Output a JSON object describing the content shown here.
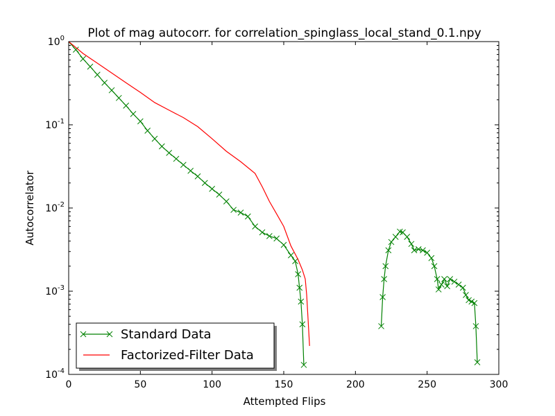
{
  "chart_data": {
    "type": "line",
    "title": "Plot of mag autocorr. for correlation_spinglass_local_stand_0.1.npy",
    "xlabel": "Attempted Flips",
    "ylabel": "Autocorrelator",
    "xlim": [
      0,
      300
    ],
    "ylim": [
      0.0001,
      1
    ],
    "yscale": "log",
    "grid": false,
    "legend_position": "lower-left",
    "x_ticks": [
      {
        "value": 0,
        "label": "0"
      },
      {
        "value": 50,
        "label": "50"
      },
      {
        "value": 100,
        "label": "100"
      },
      {
        "value": 150,
        "label": "150"
      },
      {
        "value": 200,
        "label": "200"
      },
      {
        "value": 250,
        "label": "250"
      },
      {
        "value": 300,
        "label": "300"
      }
    ],
    "y_ticks": [
      {
        "value": 1,
        "base": "10",
        "exp": "0"
      },
      {
        "value": 0.1,
        "base": "10",
        "exp": "-1"
      },
      {
        "value": 0.01,
        "base": "10",
        "exp": "-2"
      },
      {
        "value": 0.001,
        "base": "10",
        "exp": "-3"
      },
      {
        "value": 0.0001,
        "base": "10",
        "exp": "-4"
      }
    ],
    "series": [
      {
        "name": "Standard Data",
        "color": "#008000",
        "marker": "x",
        "points": [
          [
            0,
            1.0
          ],
          [
            5,
            0.8
          ],
          [
            10,
            0.62
          ],
          [
            15,
            0.5
          ],
          [
            20,
            0.4
          ],
          [
            25,
            0.32
          ],
          [
            30,
            0.26
          ],
          [
            35,
            0.21
          ],
          [
            40,
            0.17
          ],
          [
            45,
            0.135
          ],
          [
            50,
            0.11
          ],
          [
            55,
            0.085
          ],
          [
            60,
            0.068
          ],
          [
            65,
            0.055
          ],
          [
            70,
            0.046
          ],
          [
            75,
            0.039
          ],
          [
            80,
            0.033
          ],
          [
            85,
            0.028
          ],
          [
            90,
            0.024
          ],
          [
            95,
            0.02
          ],
          [
            100,
            0.017
          ],
          [
            105,
            0.0145
          ],
          [
            110,
            0.012
          ],
          [
            115,
            0.0095
          ],
          [
            120,
            0.0088
          ],
          [
            125,
            0.0079
          ],
          [
            130,
            0.006
          ],
          [
            135,
            0.0051
          ],
          [
            140,
            0.0046
          ],
          [
            145,
            0.0043
          ],
          [
            150,
            0.0036
          ],
          [
            155,
            0.0027
          ],
          [
            158,
            0.0023
          ],
          [
            160,
            0.0016
          ],
          [
            161,
            0.0011
          ],
          [
            162,
            0.00075
          ],
          [
            163,
            0.0004
          ],
          [
            164,
            0.00013
          ],
          [
            218,
            0.00038
          ],
          [
            219,
            0.00085
          ],
          [
            220,
            0.0014
          ],
          [
            221,
            0.002
          ],
          [
            223,
            0.0031
          ],
          [
            225,
            0.0039
          ],
          [
            228,
            0.0045
          ],
          [
            231,
            0.0052
          ],
          [
            233,
            0.0051
          ],
          [
            236,
            0.0045
          ],
          [
            239,
            0.0037
          ],
          [
            241,
            0.0031
          ],
          [
            244,
            0.0032
          ],
          [
            247,
            0.0031
          ],
          [
            250,
            0.0029
          ],
          [
            253,
            0.0025
          ],
          [
            255,
            0.002
          ],
          [
            257,
            0.0014
          ],
          [
            258,
            0.00105
          ],
          [
            260,
            0.0012
          ],
          [
            262,
            0.0014
          ],
          [
            264,
            0.00115
          ],
          [
            266,
            0.0014
          ],
          [
            269,
            0.0013
          ],
          [
            272,
            0.0012
          ],
          [
            275,
            0.0011
          ],
          [
            277,
            0.0009
          ],
          [
            279,
            0.00078
          ],
          [
            281,
            0.00075
          ],
          [
            283,
            0.00072
          ],
          [
            284,
            0.00038
          ],
          [
            285,
            0.00014
          ]
        ]
      },
      {
        "name": "Factorized-Filter Data",
        "color": "#ff0000",
        "marker": "none",
        "points": [
          [
            0,
            1.0
          ],
          [
            10,
            0.72
          ],
          [
            20,
            0.55
          ],
          [
            30,
            0.42
          ],
          [
            40,
            0.32
          ],
          [
            50,
            0.245
          ],
          [
            60,
            0.185
          ],
          [
            70,
            0.15
          ],
          [
            80,
            0.122
          ],
          [
            90,
            0.095
          ],
          [
            100,
            0.068
          ],
          [
            110,
            0.048
          ],
          [
            120,
            0.036
          ],
          [
            130,
            0.026
          ],
          [
            135,
            0.018
          ],
          [
            140,
            0.012
          ],
          [
            145,
            0.0085
          ],
          [
            150,
            0.006
          ],
          [
            155,
            0.0035
          ],
          [
            160,
            0.0024
          ],
          [
            163,
            0.0018
          ],
          [
            165,
            0.0014
          ],
          [
            166,
            0.0009
          ],
          [
            167,
            0.00045
          ],
          [
            168,
            0.00022
          ]
        ]
      }
    ]
  }
}
